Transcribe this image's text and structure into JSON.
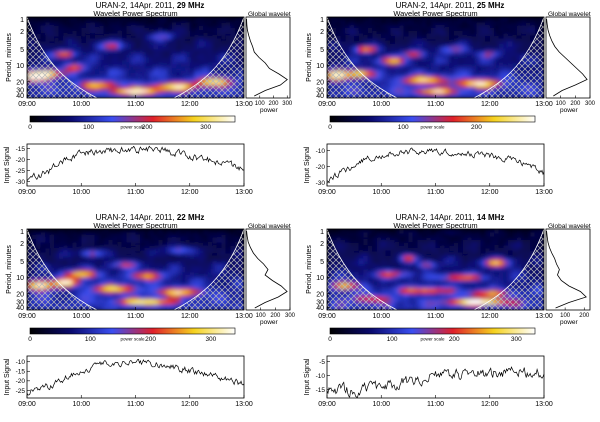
{
  "chart_data": [
    {
      "type": "heatmap",
      "title_prefix": "URAN-2, 14Apr. 2011,",
      "title_freq": "29 MHz",
      "subtitle": "Wavelet Power Spectrum",
      "ylabel": "Period, minutes",
      "period_ticks": [
        "1",
        "2",
        "5",
        "10",
        "20",
        "30",
        "40"
      ],
      "time_ticks": [
        "09:00",
        "10:00",
        "11:00",
        "12:00",
        "13:00"
      ],
      "global_title": "Global wavelet",
      "global_ticks": [
        "100",
        "200",
        "300"
      ],
      "global_xlabel": "power",
      "global_max": 320,
      "global_values": [
        4,
        6,
        10,
        20,
        32,
        48,
        60,
        95,
        140,
        170,
        240,
        300,
        250,
        140,
        60
      ],
      "colorbar_label": "power scale",
      "colorbar_ticks": [
        "0",
        "100",
        "200",
        "300"
      ],
      "colorbar_max": 350,
      "signal_ylabel": "Input Signal",
      "signal_ticks": [
        "-15",
        "-20",
        "-25",
        "-30"
      ],
      "signal_range": [
        -32,
        -13
      ],
      "signal_envelope": [
        -29,
        -26,
        -20,
        -17,
        -16,
        -15.5,
        -15.5,
        -16,
        -18,
        -20,
        -22,
        -24
      ],
      "signal_noise": 1.2,
      "seed": 11,
      "blobs": [
        [
          0.17,
          0.46,
          0.05,
          0.04,
          0.7
        ],
        [
          0.38,
          0.36,
          0.06,
          0.05,
          0.5
        ],
        [
          0.22,
          0.62,
          0.05,
          0.05,
          0.55
        ],
        [
          0.62,
          0.24,
          0.06,
          0.05,
          0.4
        ],
        [
          0.04,
          0.74,
          0.06,
          0.06,
          1.0
        ],
        [
          0.1,
          0.7,
          0.06,
          0.05,
          0.8
        ],
        [
          0.33,
          0.84,
          0.1,
          0.05,
          0.6
        ],
        [
          0.5,
          0.92,
          0.1,
          0.04,
          1.0
        ],
        [
          0.68,
          0.86,
          0.1,
          0.05,
          0.8
        ],
        [
          0.86,
          0.8,
          0.08,
          0.05,
          0.9
        ]
      ]
    },
    {
      "type": "heatmap",
      "title_prefix": "URAN-2, 14Apr. 2011,",
      "title_freq": "25 MHz",
      "subtitle": "Wavelet Power Spectrum",
      "ylabel": "Period, minutes",
      "period_ticks": [
        "1",
        "2",
        "5",
        "10",
        "20",
        "30",
        "40"
      ],
      "time_ticks": [
        "09:00",
        "10:00",
        "11:00",
        "12:00",
        "13:00"
      ],
      "global_title": "Global wavelet",
      "global_ticks": [
        "100",
        "200",
        "300"
      ],
      "global_xlabel": "power",
      "global_max": 300,
      "global_values": [
        4,
        8,
        14,
        25,
        40,
        60,
        90,
        130,
        170,
        210,
        250,
        280,
        200,
        110,
        50
      ],
      "colorbar_label": "power scale",
      "colorbar_ticks": [
        "0",
        "100",
        "200"
      ],
      "colorbar_max": 280,
      "signal_ylabel": "Input Signal",
      "signal_ticks": [
        "-10",
        "-20",
        "-30"
      ],
      "signal_range": [
        -32,
        -6
      ],
      "signal_envelope": [
        -28,
        -22,
        -15,
        -12,
        -11,
        -10.5,
        -11,
        -12,
        -13,
        -15,
        -18,
        -24
      ],
      "signal_noise": 1.4,
      "seed": 23,
      "blobs": [
        [
          0.18,
          0.4,
          0.05,
          0.04,
          0.8
        ],
        [
          0.3,
          0.54,
          0.06,
          0.05,
          0.7
        ],
        [
          0.4,
          0.46,
          0.05,
          0.04,
          0.6
        ],
        [
          0.58,
          0.4,
          0.06,
          0.05,
          0.4
        ],
        [
          0.75,
          0.46,
          0.05,
          0.04,
          0.4
        ],
        [
          0.05,
          0.72,
          0.05,
          0.06,
          1.0
        ],
        [
          0.15,
          0.7,
          0.06,
          0.05,
          0.8
        ],
        [
          0.45,
          0.78,
          0.1,
          0.05,
          0.8
        ],
        [
          0.7,
          0.82,
          0.1,
          0.05,
          0.9
        ],
        [
          0.5,
          0.92,
          0.1,
          0.04,
          0.7
        ]
      ]
    },
    {
      "type": "heatmap",
      "title_prefix": "URAN-2, 14Apr. 2011,",
      "title_freq": "22 MHz",
      "subtitle": "Wavelet Power Spectrum",
      "ylabel": "Period, minutes",
      "period_ticks": [
        "1",
        "2",
        "5",
        "10",
        "20",
        "30",
        "40"
      ],
      "time_ticks": [
        "09:00",
        "10:00",
        "11:00",
        "12:00",
        "13:00"
      ],
      "global_title": "Global wavelet",
      "global_ticks": [
        "100",
        "200",
        "300"
      ],
      "global_xlabel": "power",
      "global_max": 300,
      "global_values": [
        4,
        8,
        15,
        30,
        50,
        80,
        120,
        150,
        130,
        180,
        240,
        280,
        220,
        130,
        60
      ],
      "colorbar_label": "power scale",
      "colorbar_ticks": [
        "0",
        "100",
        "200",
        "300"
      ],
      "colorbar_max": 340,
      "signal_ylabel": "Input Signal",
      "signal_ticks": [
        "-10",
        "-15",
        "-20",
        "-25"
      ],
      "signal_range": [
        -29,
        -7
      ],
      "signal_envelope": [
        -26,
        -23,
        -18,
        -14,
        -11,
        -10,
        -10.5,
        -12,
        -14,
        -16,
        -19,
        -22
      ],
      "signal_noise": 1.3,
      "seed": 37,
      "blobs": [
        [
          0.3,
          0.3,
          0.05,
          0.04,
          0.5
        ],
        [
          0.7,
          0.26,
          0.06,
          0.05,
          0.4
        ],
        [
          0.45,
          0.44,
          0.06,
          0.04,
          0.5
        ],
        [
          0.25,
          0.56,
          0.08,
          0.05,
          0.8
        ],
        [
          0.55,
          0.58,
          0.08,
          0.05,
          0.7
        ],
        [
          0.06,
          0.7,
          0.06,
          0.06,
          1.0
        ],
        [
          0.18,
          0.66,
          0.06,
          0.05,
          0.9
        ],
        [
          0.4,
          0.74,
          0.1,
          0.05,
          0.8
        ],
        [
          0.7,
          0.78,
          0.1,
          0.05,
          0.8
        ],
        [
          0.55,
          0.9,
          0.12,
          0.04,
          0.9
        ]
      ]
    },
    {
      "type": "heatmap",
      "title_prefix": "URAN-2, 14Apr. 2011,",
      "title_freq": "14 MHz",
      "subtitle": "Wavelet Power Spectrum",
      "ylabel": "Period, minutes",
      "period_ticks": [
        "1",
        "2",
        "5",
        "10",
        "20",
        "30",
        "40"
      ],
      "time_ticks": [
        "09:00",
        "10:00",
        "11:00",
        "12:00",
        "13:00"
      ],
      "global_title": "Global wavelet",
      "global_ticks": [
        "100",
        "200"
      ],
      "global_xlabel": "power",
      "global_max": 230,
      "global_values": [
        3,
        6,
        10,
        18,
        30,
        45,
        55,
        70,
        60,
        80,
        120,
        180,
        210,
        120,
        50
      ],
      "colorbar_label": "power scale",
      "colorbar_ticks": [
        "0",
        "100",
        "200",
        "300"
      ],
      "colorbar_max": 330,
      "signal_ylabel": "Input Signal",
      "signal_ticks": [
        "-5",
        "-10",
        "-15"
      ],
      "signal_range": [
        -18,
        -3
      ],
      "signal_envelope": [
        -15,
        -15.5,
        -15,
        -14,
        -12,
        -10.5,
        -10,
        -9.5,
        -9,
        -9,
        -9,
        -9.5
      ],
      "signal_noise": 1.5,
      "seed": 53,
      "blobs": [
        [
          0.38,
          0.36,
          0.04,
          0.04,
          0.6
        ],
        [
          0.46,
          0.44,
          0.04,
          0.04,
          0.5
        ],
        [
          0.78,
          0.42,
          0.06,
          0.05,
          0.8
        ],
        [
          0.62,
          0.6,
          0.1,
          0.04,
          0.6
        ],
        [
          0.3,
          0.56,
          0.08,
          0.04,
          0.5
        ],
        [
          0.08,
          0.7,
          0.06,
          0.05,
          0.8
        ],
        [
          0.45,
          0.76,
          0.12,
          0.04,
          0.6
        ],
        [
          0.75,
          0.8,
          0.1,
          0.04,
          0.6
        ],
        [
          0.7,
          0.9,
          0.14,
          0.04,
          1.0
        ],
        [
          0.2,
          0.86,
          0.1,
          0.04,
          0.5
        ]
      ]
    }
  ]
}
